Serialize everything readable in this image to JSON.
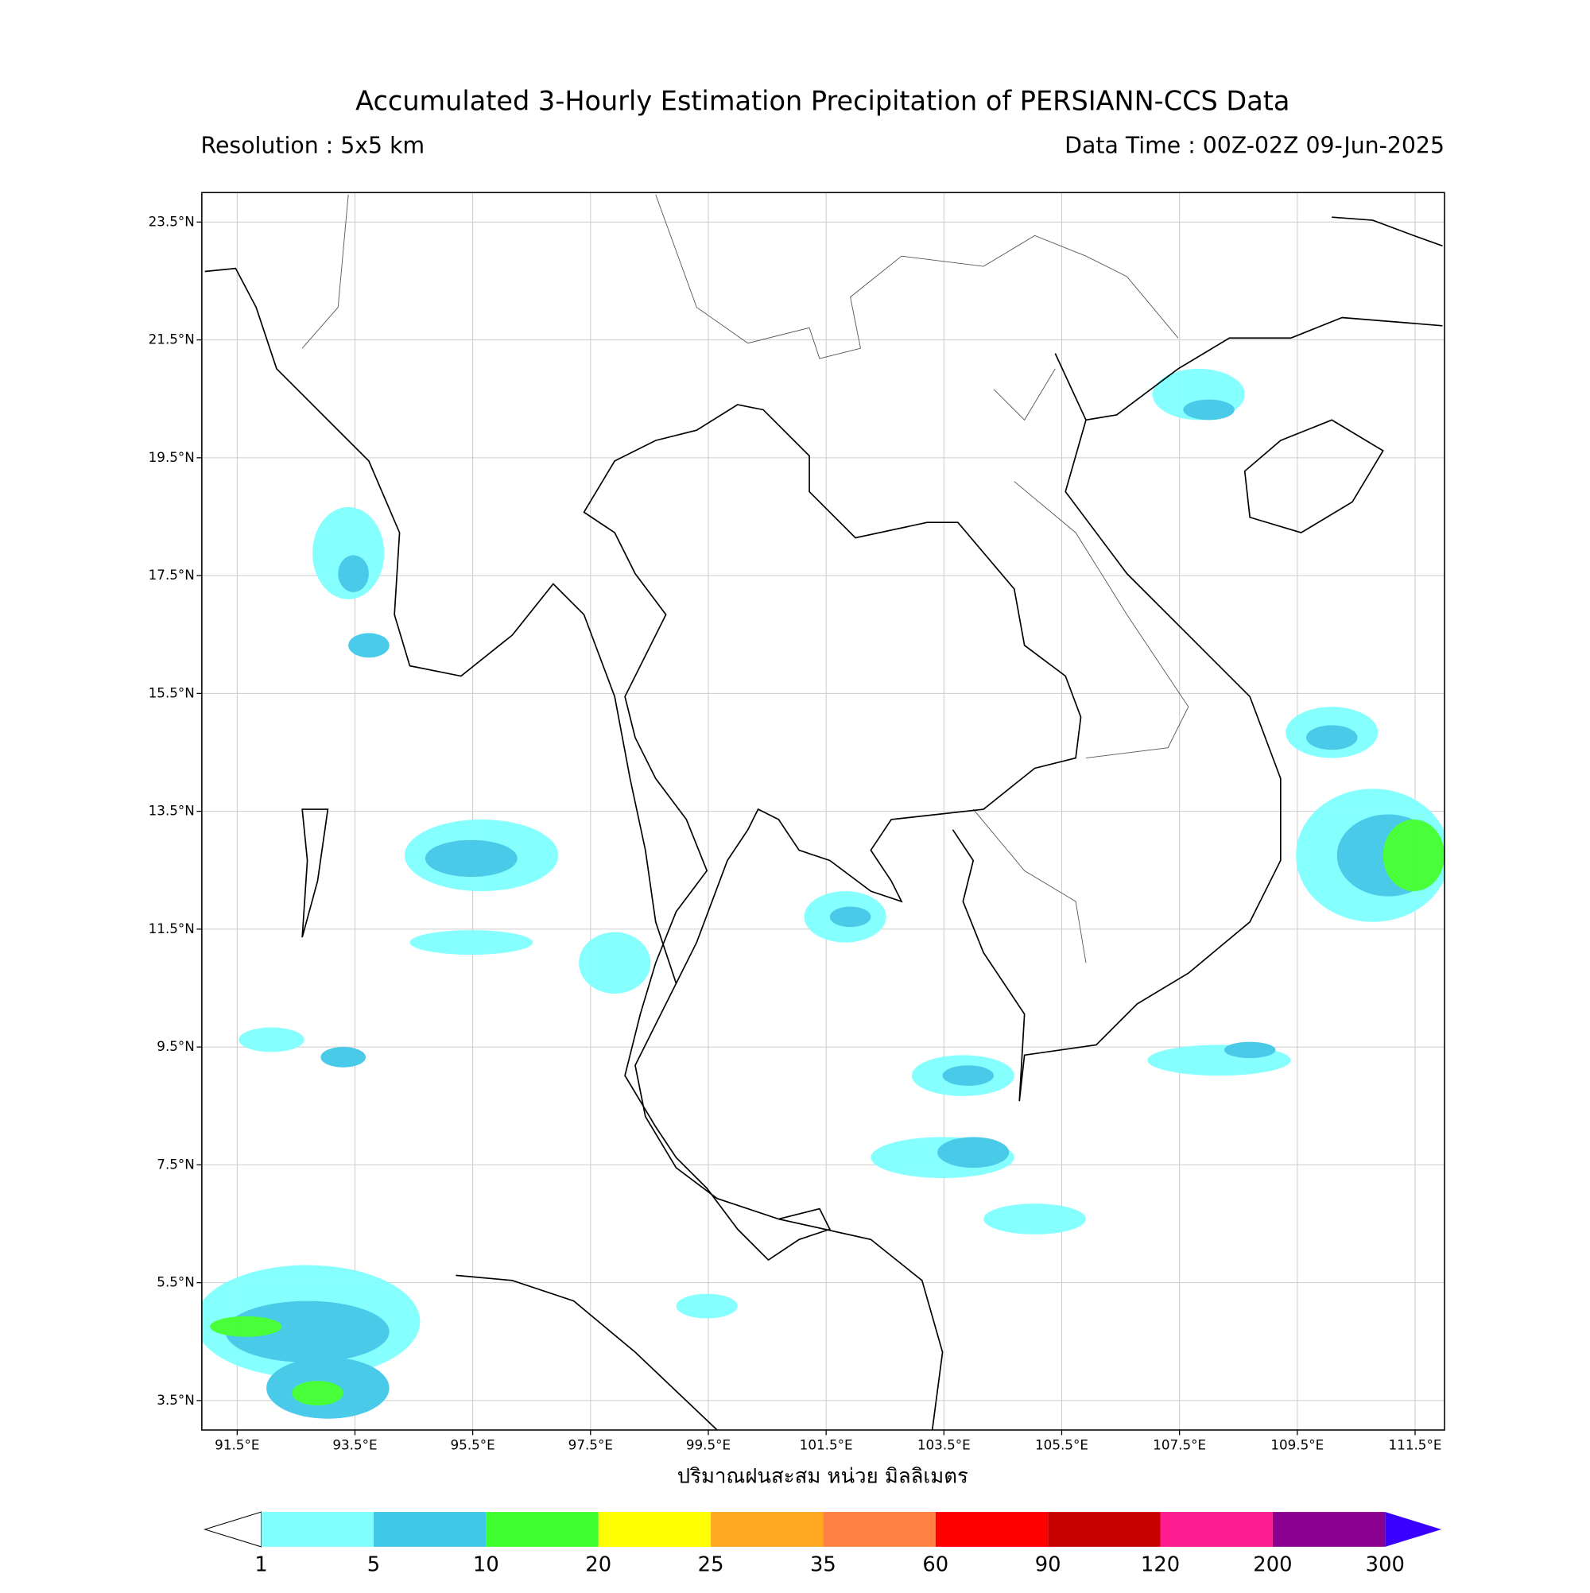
{
  "title": "Accumulated 3-Hourly Estimation Precipitation of PERSIANN-CCS Data",
  "subtitle_left": "Resolution : 5x5 km",
  "subtitle_right": "Data Time : 00Z-02Z 09-Jun-2025",
  "map": {
    "xlim": [
      90.9,
      112.0
    ],
    "ylim": [
      3.0,
      24.0
    ],
    "grid": true,
    "xticks": [
      {
        "value": 91.5,
        "label": "91.5°E"
      },
      {
        "value": 93.5,
        "label": "93.5°E"
      },
      {
        "value": 95.5,
        "label": "95.5°E"
      },
      {
        "value": 97.5,
        "label": "97.5°E"
      },
      {
        "value": 99.5,
        "label": "99.5°E"
      },
      {
        "value": 101.5,
        "label": "101.5°E"
      },
      {
        "value": 103.5,
        "label": "103.5°E"
      },
      {
        "value": 105.5,
        "label": "105.5°E"
      },
      {
        "value": 107.5,
        "label": "107.5°E"
      },
      {
        "value": 109.5,
        "label": "109.5°E"
      },
      {
        "value": 111.5,
        "label": "111.5°E"
      }
    ],
    "yticks": [
      {
        "value": 3.5,
        "label": "3.5°N"
      },
      {
        "value": 5.5,
        "label": "5.5°N"
      },
      {
        "value": 7.5,
        "label": "7.5°N"
      },
      {
        "value": 9.5,
        "label": "9.5°N"
      },
      {
        "value": 11.5,
        "label": "11.5°N"
      },
      {
        "value": 13.5,
        "label": "13.5°N"
      },
      {
        "value": 15.5,
        "label": "15.5°N"
      },
      {
        "value": 17.5,
        "label": "17.5°N"
      },
      {
        "value": 19.5,
        "label": "19.5°N"
      },
      {
        "value": 21.5,
        "label": "21.5°N"
      },
      {
        "value": 23.5,
        "label": "23.5°N"
      }
    ],
    "xlabel": "ปริมาณฝนสะสม หน่วย มิลลิเมตร"
  },
  "colorbar": {
    "levels": [
      1,
      5,
      10,
      20,
      25,
      35,
      60,
      90,
      120,
      200,
      300
    ],
    "colors": [
      "#80ffff",
      "#40c8e8",
      "#40ff30",
      "#ffff00",
      "#ffa820",
      "#ff8040",
      "#ff0000",
      "#c80000",
      "#ff1c90",
      "#8c0090"
    ],
    "under_color": "#ffffff",
    "over_color": "#3a00ff"
  }
}
